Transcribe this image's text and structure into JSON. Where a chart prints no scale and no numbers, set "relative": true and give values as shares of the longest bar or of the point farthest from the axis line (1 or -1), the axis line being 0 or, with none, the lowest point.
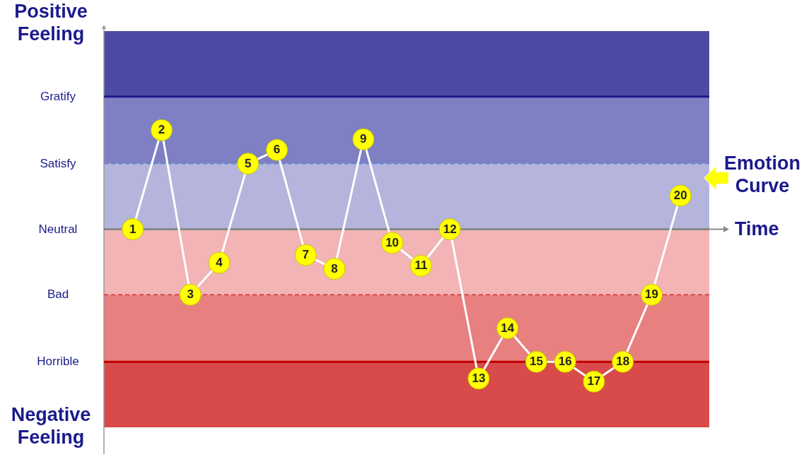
{
  "chart_data": {
    "type": "line",
    "relative": true,
    "xlabel": "Time",
    "categories": [
      "1",
      "2",
      "3",
      "4",
      "5",
      "6",
      "7",
      "8",
      "9",
      "10",
      "11",
      "12",
      "13",
      "14",
      "15",
      "16",
      "17",
      "18",
      "19",
      "20"
    ],
    "series": [
      {
        "color": "#ffff00",
        "values": [
          0,
          0.65,
          -0.43,
          -0.22,
          0.43,
          0.52,
          -0.17,
          -0.26,
          0.59,
          -0.09,
          -0.24,
          0,
          -0.98,
          -0.65,
          -0.87,
          -0.87,
          -1,
          -0.87,
          -0.43,
          0.22
        ]
      }
    ],
    "bands": [
      {
        "axis": "y",
        "from": 0.87,
        "to": 1.3,
        "color": "#4b4ba3"
      },
      {
        "axis": "y",
        "from": 0.43,
        "to": 0.87,
        "color": "#7f7fc4"
      },
      {
        "axis": "y",
        "from": 0,
        "to": 0.43,
        "color": "#b4b4dc"
      },
      {
        "axis": "y",
        "from": -0.43,
        "to": 0,
        "color": "#f2b4b4"
      },
      {
        "axis": "y",
        "from": -0.87,
        "to": -0.43,
        "color": "#e88080"
      },
      {
        "axis": "y",
        "from": -1.3,
        "to": -0.87,
        "color": "#d94a4a"
      }
    ],
    "ref_lines": [
      {
        "axis": "y",
        "value": 0.87,
        "label": "Gratify",
        "color": "#1a1a8c",
        "line_style": "solid"
      },
      {
        "axis": "y",
        "value": 0.43,
        "label": "Satisfy",
        "color": "#5a8ad8",
        "line_style": "dashed"
      },
      {
        "axis": "y",
        "value": 0,
        "label": "Neutral",
        "color": "#888888",
        "line_style": "solid"
      },
      {
        "axis": "y",
        "value": -0.43,
        "label": "Bad",
        "color": "#d03030",
        "line_style": "dashed"
      },
      {
        "axis": "y",
        "value": -0.87,
        "label": "Horrible",
        "color": "#c00000",
        "line_style": "solid"
      }
    ],
    "annotations": [
      "Positive\nFeeling",
      "Negative\nFeeling",
      "Emotion\nCurve"
    ],
    "marker": "circle",
    "line_style": "solid"
  }
}
